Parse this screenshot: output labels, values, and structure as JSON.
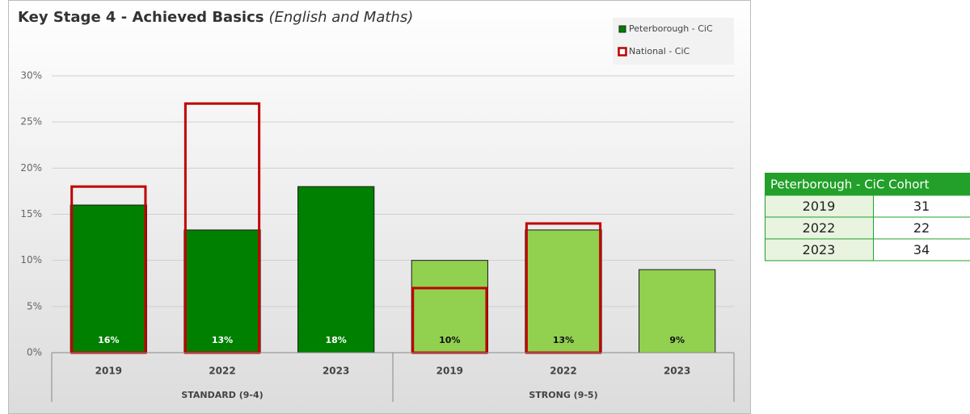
{
  "chart_data": {
    "type": "bar",
    "title": "Key Stage 4 - Achieved Basics",
    "title_note": "(English and Maths)",
    "categories": [
      "2019",
      "2022",
      "2023",
      "2019",
      "2022",
      "2023"
    ],
    "group_labels": [
      "STANDARD (9-4)",
      "STRONG (9-5)"
    ],
    "series": [
      {
        "name": "Peterborough - CiC",
        "color": "#008000",
        "style": "filled",
        "colors": [
          "#008000",
          "#008000",
          "#008000",
          "#92d050",
          "#92d050",
          "#92d050"
        ],
        "values": [
          16,
          13.3,
          18,
          10,
          13.3,
          9
        ],
        "value_labels": [
          "16%",
          "13%",
          "18%",
          "10%",
          "13%",
          "9%"
        ]
      },
      {
        "name": "National - CiC",
        "color": "#c00000",
        "style": "outline",
        "values": [
          18,
          27,
          null,
          7,
          14,
          null
        ]
      }
    ],
    "ylim": [
      0,
      30
    ],
    "yticks": [
      {
        "value": 0,
        "label": "0%"
      },
      {
        "value": 5,
        "label": "5%"
      },
      {
        "value": 10,
        "label": "10%"
      },
      {
        "value": 15,
        "label": "15%"
      },
      {
        "value": 20,
        "label": "20%"
      },
      {
        "value": 25,
        "label": "25%"
      },
      {
        "value": 30,
        "label": "30%"
      }
    ],
    "grid": true,
    "legend": "top-right"
  },
  "cohort_table": {
    "header": "Peterborough - CiC Cohort",
    "rows": [
      [
        "2019",
        31
      ],
      [
        "2022",
        22
      ],
      [
        "2023",
        34
      ]
    ]
  }
}
